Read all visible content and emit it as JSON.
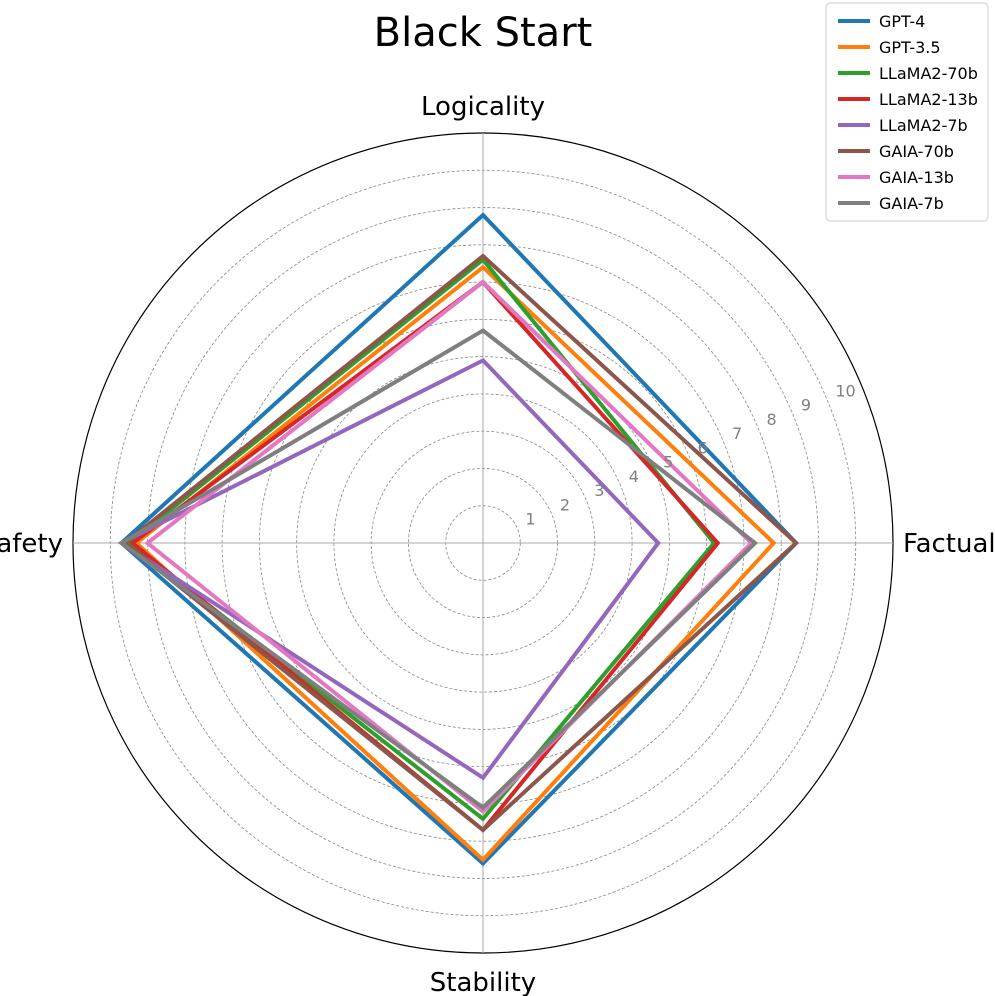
{
  "chart_data": {
    "type": "radar",
    "title": "Black Start",
    "axes": [
      "Logicality",
      "Factuality",
      "Stability",
      "Safety"
    ],
    "rlim": [
      0,
      11
    ],
    "rticks": [
      1,
      2,
      3,
      4,
      5,
      6,
      7,
      8,
      9,
      10
    ],
    "rtick_labels": [
      "1",
      "2",
      "3",
      "4",
      "5",
      "6",
      "7",
      "8",
      "9",
      "10"
    ],
    "grid": true,
    "legend_position": "top-right",
    "series": [
      {
        "name": "GPT-4",
        "color": "#1f77b4",
        "values": [
          8.8,
          8.4,
          8.6,
          9.7
        ]
      },
      {
        "name": "GPT-3.5",
        "color": "#ff7f0e",
        "values": [
          7.4,
          7.8,
          8.5,
          9.3
        ]
      },
      {
        "name": "LLaMA2-70b",
        "color": "#2ca02c",
        "values": [
          7.6,
          6.2,
          7.4,
          9.5
        ]
      },
      {
        "name": "LLaMA2-13b",
        "color": "#d62728",
        "values": [
          7.0,
          6.3,
          7.7,
          9.4
        ]
      },
      {
        "name": "LLaMA2-7b",
        "color": "#9467bd",
        "values": [
          4.9,
          4.7,
          6.3,
          9.7
        ]
      },
      {
        "name": "GAIA-70b",
        "color": "#8c564b",
        "values": [
          7.7,
          8.4,
          7.7,
          9.6
        ]
      },
      {
        "name": "GAIA-13b",
        "color": "#e377c2",
        "values": [
          7.0,
          7.2,
          7.2,
          9.0
        ]
      },
      {
        "name": "GAIA-7b",
        "color": "#7f7f7f",
        "values": [
          5.7,
          7.3,
          7.1,
          9.7
        ]
      }
    ]
  }
}
